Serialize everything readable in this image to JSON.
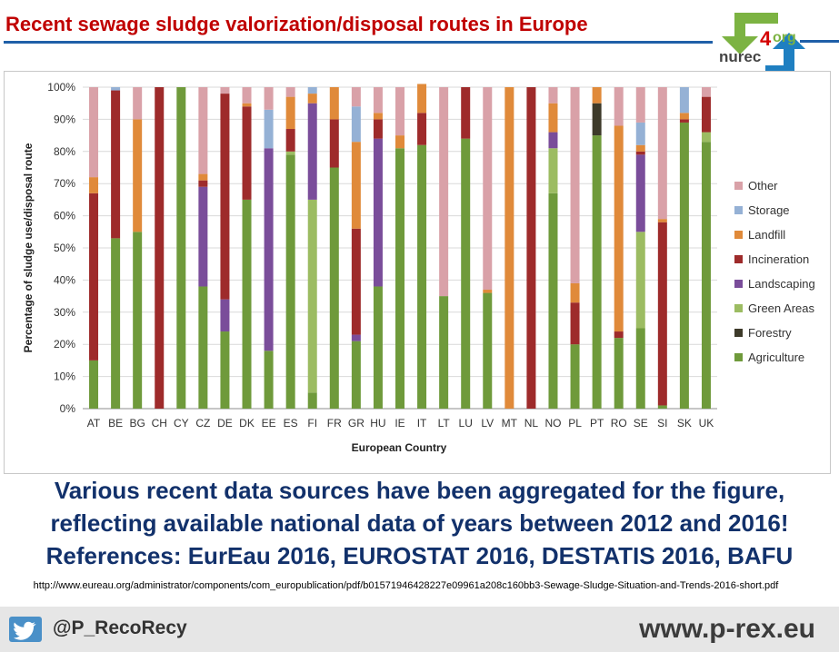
{
  "header": {
    "title": "Recent sewage sludge valorization/disposal routes in Europe",
    "logo_text": "nurec",
    "logo_num": "4",
    "logo_org": "org"
  },
  "note": {
    "line1": "Various recent data sources have been aggregated for the figure,",
    "line2": "reflecting available national data of years between 2012 and 2016!",
    "line3": "References: EurEau 2016, EUROSTAT 2016, DESTATIS 2016, BAFU"
  },
  "source_url": "http://www.eureau.org/administrator/components/com_europublication/pdf/b01571946428227e09961a208c160bb3-Sewage-Sludge-Situation-and-Trends-2016-short.pdf",
  "footer": {
    "handle": "@P_RecoRecy",
    "site": "www.p-rex.eu",
    "twitter_icon": "twitter-bird-icon"
  },
  "chart_data": {
    "type": "bar",
    "stacked": true,
    "xlabel": "European Country",
    "ylabel": "Percentage of sludge use/disposal route",
    "ylim": [
      0,
      100
    ],
    "yticks": [
      "0%",
      "10%",
      "20%",
      "30%",
      "40%",
      "50%",
      "60%",
      "70%",
      "80%",
      "90%",
      "100%"
    ],
    "grid": true,
    "legend_position": "right",
    "categories": [
      "AT",
      "BE",
      "BG",
      "CH",
      "CY",
      "CZ",
      "DE",
      "DK",
      "EE",
      "ES",
      "FI",
      "FR",
      "GR",
      "HU",
      "IE",
      "IT",
      "LT",
      "LU",
      "LV",
      "MT",
      "NL",
      "NO",
      "PL",
      "PT",
      "RO",
      "SE",
      "SI",
      "SK",
      "UK"
    ],
    "series": [
      {
        "name": "Agriculture",
        "color": "#6f9a3b",
        "values": [
          15,
          53,
          55,
          0,
          100,
          38,
          24,
          65,
          18,
          79,
          5,
          75,
          21,
          38,
          81,
          82,
          35,
          84,
          36,
          0,
          0,
          67,
          20,
          85,
          22,
          25,
          1,
          89,
          83
        ]
      },
      {
        "name": "Forestry",
        "color": "#3d3a2a",
        "values": [
          0,
          0,
          0,
          0,
          0,
          0,
          0,
          0,
          0,
          0,
          0,
          0,
          0,
          0,
          0,
          0,
          0,
          0,
          0,
          0,
          0,
          0,
          0,
          10,
          0,
          0,
          0,
          0,
          0
        ]
      },
      {
        "name": "Green Areas",
        "color": "#9cbc62",
        "values": [
          0,
          0,
          0,
          0,
          0,
          0,
          0,
          0,
          0,
          1,
          60,
          0,
          0,
          0,
          0,
          0,
          0,
          0,
          0,
          0,
          0,
          14,
          0,
          0,
          0,
          30,
          0,
          0,
          3
        ]
      },
      {
        "name": "Landscaping",
        "color": "#7a4d9a",
        "values": [
          0,
          0,
          0,
          0,
          0,
          31,
          10,
          0,
          63,
          0,
          30,
          0,
          2,
          46,
          0,
          0,
          0,
          0,
          0,
          0,
          0,
          5,
          0,
          0,
          0,
          24,
          0,
          0,
          0
        ]
      },
      {
        "name": "Incineration",
        "color": "#9e2b2b",
        "values": [
          52,
          46,
          0,
          100,
          0,
          2,
          64,
          29,
          0,
          7,
          0,
          15,
          33,
          6,
          0,
          10,
          0,
          16,
          0,
          0,
          100,
          0,
          13,
          0,
          2,
          1,
          57,
          1,
          11
        ]
      },
      {
        "name": "Landfill",
        "color": "#e08a3a",
        "values": [
          5,
          0,
          35,
          0,
          0,
          2,
          0,
          1,
          0,
          10,
          3,
          10,
          27,
          2,
          4,
          9,
          0,
          0,
          1,
          100,
          0,
          9,
          6,
          5,
          64,
          2,
          1,
          2,
          0
        ]
      },
      {
        "name": "Storage",
        "color": "#95b1d5",
        "values": [
          0,
          1,
          0,
          0,
          0,
          0,
          0,
          0,
          12,
          0,
          2,
          0,
          11,
          0,
          0,
          0,
          0,
          0,
          0,
          0,
          0,
          0,
          0,
          0,
          0,
          7,
          0,
          8,
          0
        ]
      },
      {
        "name": "Other",
        "color": "#d9a1a8",
        "values": [
          28,
          0,
          10,
          0,
          0,
          27,
          2,
          5,
          7,
          3,
          0,
          0,
          6,
          8,
          15,
          0,
          65,
          0,
          63,
          0,
          0,
          5,
          61,
          0,
          12,
          11,
          41,
          0,
          3
        ]
      }
    ]
  }
}
